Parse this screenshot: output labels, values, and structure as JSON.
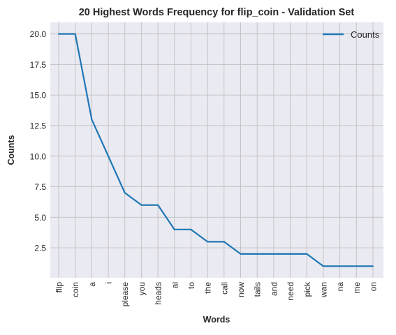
{
  "chart_data": {
    "type": "line",
    "title": "20 Highest Words Frequency for flip_coin - Validation Set",
    "xlabel": "Words",
    "ylabel": "Counts",
    "categories": [
      "flip",
      "coin",
      "a",
      "i",
      "please",
      "you",
      "heads",
      "ai",
      "to",
      "the",
      "call",
      "now",
      "tails",
      "and",
      "need",
      "pick",
      "wan",
      "na",
      "me",
      "on"
    ],
    "series": [
      {
        "name": "Counts",
        "values": [
          20,
          20,
          13,
          10,
          7,
          6,
          6,
          4,
          4,
          3,
          3,
          2,
          2,
          2,
          2,
          2,
          1,
          1,
          1,
          1
        ],
        "color": "#1f77b4"
      }
    ],
    "ylim": [
      0.05,
      20.95
    ],
    "yticks": [
      2.5,
      5.0,
      7.5,
      10.0,
      12.5,
      15.0,
      17.5,
      20.0
    ],
    "ytick_labels": [
      "2.5",
      "5.0",
      "7.5",
      "10.0",
      "12.5",
      "15.0",
      "17.5",
      "20.0"
    ],
    "grid": true,
    "legend_position": "top-right",
    "colors": {
      "plot_background": "#eaeaf2",
      "grid": "#c0c0c0",
      "line": "#1f77b4"
    }
  }
}
